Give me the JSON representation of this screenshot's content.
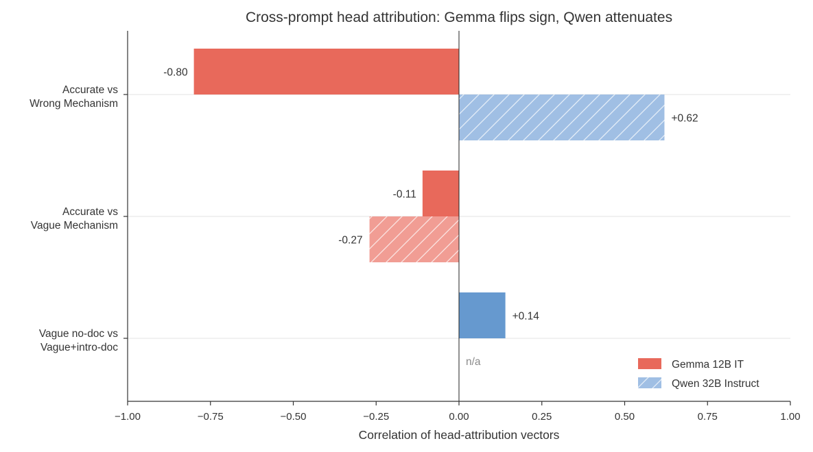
{
  "chart_data": {
    "type": "bar",
    "orientation": "horizontal",
    "title": "Cross-prompt head attribution: Gemma flips sign, Qwen attenuates",
    "xlabel": "Correlation of head-attribution vectors",
    "xlim": [
      -1.0,
      1.0
    ],
    "xticks": [
      -1.0,
      -0.75,
      -0.5,
      -0.25,
      0.0,
      0.25,
      0.5,
      0.75,
      1.0
    ],
    "xtick_labels": [
      "−1.00",
      "−0.75",
      "−0.50",
      "−0.25",
      "0.00",
      "0.25",
      "0.50",
      "0.75",
      "1.00"
    ],
    "categories": [
      [
        "Accurate vs",
        "Wrong Mechanism"
      ],
      [
        "Accurate vs",
        "Vague Mechanism"
      ],
      [
        "Vague no-doc vs",
        "Vague+intro-doc"
      ]
    ],
    "series": [
      {
        "name": "Gemma 12B IT",
        "color": "#e8695b",
        "values": [
          -0.8,
          -0.11,
          null
        ],
        "labels": [
          "-0.80",
          "-0.11",
          ""
        ],
        "hatched": [
          false,
          false,
          false
        ]
      },
      {
        "name": "Qwen 32B Instruct",
        "color": "#6699cf",
        "values": [
          0.62,
          -0.27,
          0.14
        ],
        "labels": [
          "+0.62",
          "-0.27",
          "+0.14"
        ],
        "hatched": [
          true,
          true,
          false
        ],
        "colors": [
          "#6699cf",
          "#e8695b",
          "#6699cf"
        ]
      }
    ],
    "missing_label": "n/a",
    "legend": {
      "placement": "lower-right",
      "entries": [
        "Gemma 12B IT",
        "Qwen 32B Instruct"
      ]
    },
    "grid": "horizontal-at-category"
  }
}
